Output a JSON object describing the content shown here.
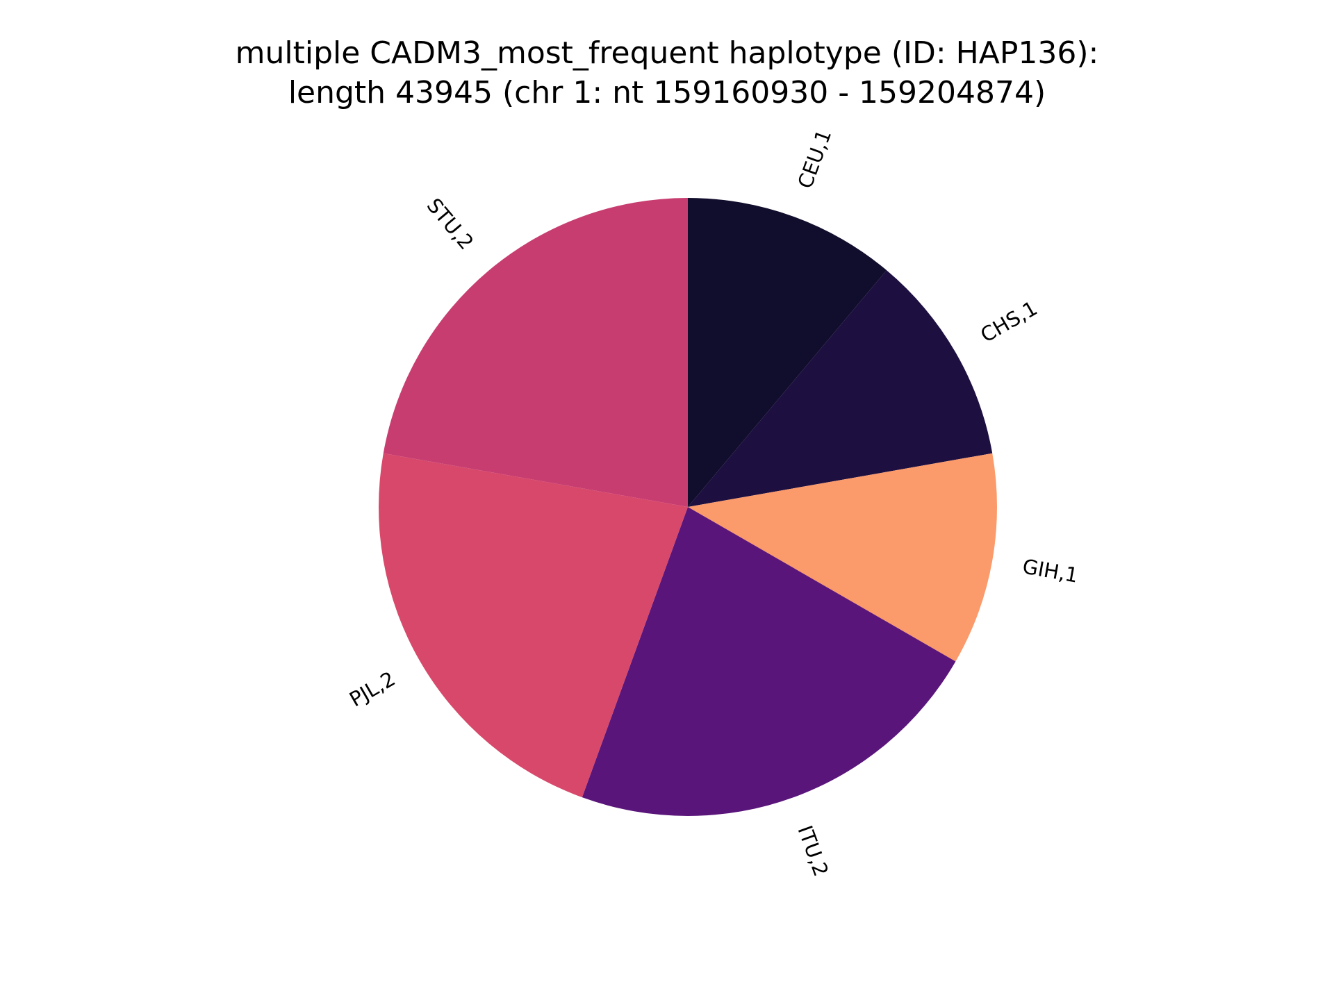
{
  "chart_data": {
    "type": "pie",
    "title_lines": [
      "multiple CADM3_most_frequent haplotype (ID: HAP136):",
      "length 43945 (chr 1: nt 159160930 - 159204874)"
    ],
    "start_angle": "top, clockwise",
    "slices": [
      {
        "label": "CEU,1",
        "value": 1,
        "color": "#110d2c"
      },
      {
        "label": "CHS,1",
        "value": 1,
        "color": "#1d1041"
      },
      {
        "label": "GIH,1",
        "value": 1,
        "color": "#fb9a6a"
      },
      {
        "label": "ITU,2",
        "value": 2,
        "color": "#5a157b"
      },
      {
        "label": "PJL,2",
        "value": 2,
        "color": "#d8486a"
      },
      {
        "label": "STU,2",
        "value": 2,
        "color": "#c83d70"
      }
    ]
  }
}
